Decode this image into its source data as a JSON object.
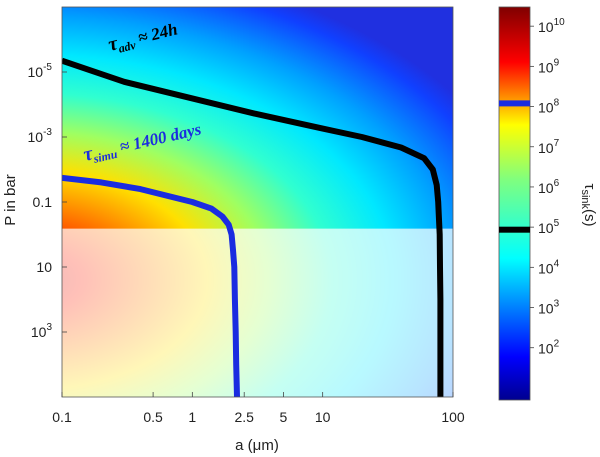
{
  "chart_data": {
    "type": "heatmap",
    "title": "",
    "xlabel": "a (μm)",
    "ylabel": "P in bar",
    "xscale": "log",
    "yscale": "log",
    "xlim": [
      0.1,
      100
    ],
    "ylim": [
      100000.0,
      1e-07
    ],
    "x_ticks": [
      {
        "value": 0.1,
        "label": "0.1"
      },
      {
        "value": 0.5,
        "label": "0.5"
      },
      {
        "value": 1,
        "label": "1"
      },
      {
        "value": 2.5,
        "label": "2.5"
      },
      {
        "value": 5,
        "label": "5"
      },
      {
        "value": 10,
        "label": "10"
      },
      {
        "value": 100,
        "label": "100"
      }
    ],
    "y_ticks": [
      {
        "value": 1e-05,
        "base": "10",
        "exp": "-5"
      },
      {
        "value": 0.001,
        "base": "10",
        "exp": "-3"
      },
      {
        "value": 0.1,
        "base": "0.1",
        "exp": ""
      },
      {
        "value": 10,
        "base": "10",
        "exp": ""
      },
      {
        "value": 1000,
        "base": "10",
        "exp": "3"
      }
    ],
    "colorbar": {
      "label": "τsink(s)",
      "label_main": "τ",
      "label_sub": "sink",
      "label_unit": "(s)",
      "scale": "log",
      "range": [
        5,
        30000000000.0
      ],
      "ticks": [
        {
          "value": 100.0,
          "exp": "2"
        },
        {
          "value": 1000.0,
          "exp": "3"
        },
        {
          "value": 10000.0,
          "exp": "4"
        },
        {
          "value": 100000.0,
          "exp": "5"
        },
        {
          "value": 1000000.0,
          "exp": "6"
        },
        {
          "value": 10000000.0,
          "exp": "7"
        },
        {
          "value": 100000000.0,
          "exp": "8"
        },
        {
          "value": 1000000000.0,
          "exp": "9"
        },
        {
          "value": 10000000000.0,
          "exp": "10"
        }
      ],
      "markers": [
        {
          "value": 120000000.0,
          "color": "#1a2ce0"
        },
        {
          "value": 86400.0,
          "color": "#000000"
        }
      ]
    },
    "shaded_region": {
      "p_min": 0.66,
      "p_max": 100000.0,
      "note": "washed-out area below the simulated domain"
    },
    "series": [
      {
        "name": "tau_adv ~ 24h",
        "color": "#000000",
        "tau_s": 86400,
        "points": [
          [
            0.1,
            4.5e-06
          ],
          [
            0.3,
            2e-05
          ],
          [
            1,
            6.5e-05
          ],
          [
            3,
            0.00019
          ],
          [
            10,
            0.00055
          ],
          [
            20,
            0.001
          ],
          [
            40,
            0.0021
          ],
          [
            60,
            0.0045
          ],
          [
            70,
            0.01
          ],
          [
            75,
            0.03
          ],
          [
            77,
            0.1
          ],
          [
            78,
            0.3
          ],
          [
            79,
            1
          ],
          [
            79.5,
            10
          ],
          [
            80,
            100
          ],
          [
            80,
            100000.0
          ]
        ]
      },
      {
        "name": "tau_simu ~ 1400 days",
        "color": "#1a2ce0",
        "tau_s": 120000000.0,
        "points": [
          [
            0.1,
            0.018
          ],
          [
            0.2,
            0.025
          ],
          [
            0.4,
            0.04
          ],
          [
            0.7,
            0.07
          ],
          [
            1.0,
            0.1
          ],
          [
            1.4,
            0.16
          ],
          [
            1.7,
            0.28
          ],
          [
            1.9,
            0.5
          ],
          [
            2.0,
            1
          ],
          [
            2.05,
            3
          ],
          [
            2.1,
            10
          ],
          [
            2.12,
            100
          ],
          [
            2.15,
            1000.0
          ],
          [
            2.17,
            10000.0
          ],
          [
            2.2,
            100000.0
          ]
        ]
      }
    ],
    "annotations": [
      {
        "series": 0,
        "main": "τ",
        "sub": "adv",
        "rest": " ≈ 24h",
        "color": "#000000"
      },
      {
        "series": 1,
        "main": "τ",
        "sub": "simu",
        "rest": " ≈ 1400 days",
        "color": "#1a2ce0"
      }
    ]
  }
}
